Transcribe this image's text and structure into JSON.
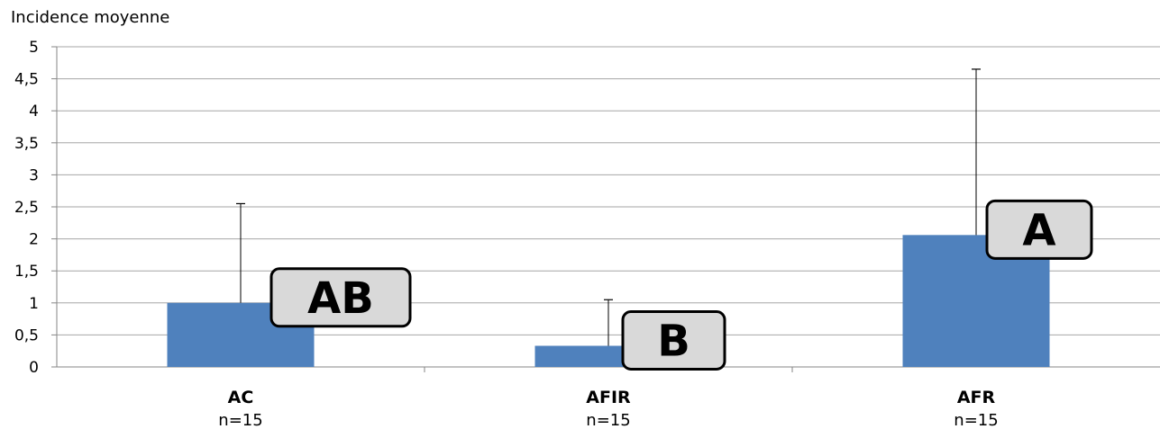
{
  "chart_data": {
    "type": "bar",
    "ylabel": "Incidence moyenne",
    "xlabel": "",
    "title": "",
    "ylim": [
      0,
      5
    ],
    "yticks": [
      "0",
      "0,5",
      "1",
      "1,5",
      "2",
      "2,5",
      "3",
      "3,5",
      "4",
      "4,5",
      "5"
    ],
    "categories": [
      "AC",
      "AFIR",
      "AFR"
    ],
    "sublabels": [
      "n=15",
      "n=15",
      "n=15"
    ],
    "values": [
      1.0,
      0.33,
      2.06
    ],
    "error_upper": [
      2.55,
      1.05,
      4.65
    ],
    "significance_labels": [
      "AB",
      "B",
      "A"
    ],
    "bar_color": "#4f81bd",
    "grid": true
  }
}
